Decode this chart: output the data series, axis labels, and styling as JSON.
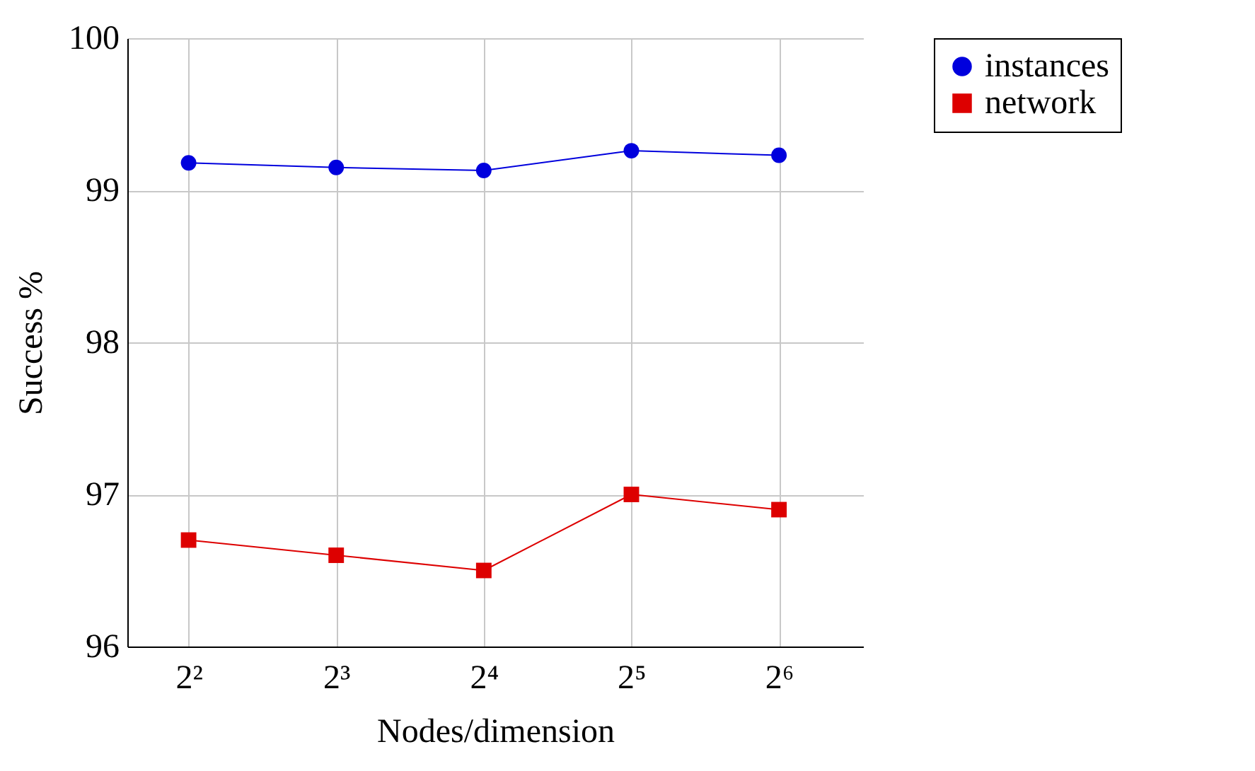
{
  "chart_data": {
    "type": "line",
    "xlabel": "Nodes/dimension",
    "ylabel": "Success %",
    "x": [
      4,
      8,
      16,
      32,
      64
    ],
    "series": [
      {
        "name": "instances",
        "color": "#0000dd",
        "marker": "circle",
        "values": [
          99.18,
          99.15,
          99.13,
          99.26,
          99.23
        ]
      },
      {
        "name": "network",
        "color": "#dd0000",
        "marker": "square",
        "values": [
          96.7,
          96.6,
          96.5,
          97.0,
          96.9
        ]
      }
    ],
    "log": "x",
    "xlim": [
      3,
      95
    ],
    "xticks": [
      {
        "value": 4,
        "label": "2²"
      },
      {
        "value": 8,
        "label": "2³"
      },
      {
        "value": 16,
        "label": "2⁴"
      },
      {
        "value": 32,
        "label": "2⁵"
      },
      {
        "value": 64,
        "label": "2⁶"
      }
    ],
    "ylim": [
      96,
      100
    ],
    "yticks": [
      96,
      97,
      98,
      99,
      100
    ],
    "grid": true,
    "legend": "top right"
  }
}
